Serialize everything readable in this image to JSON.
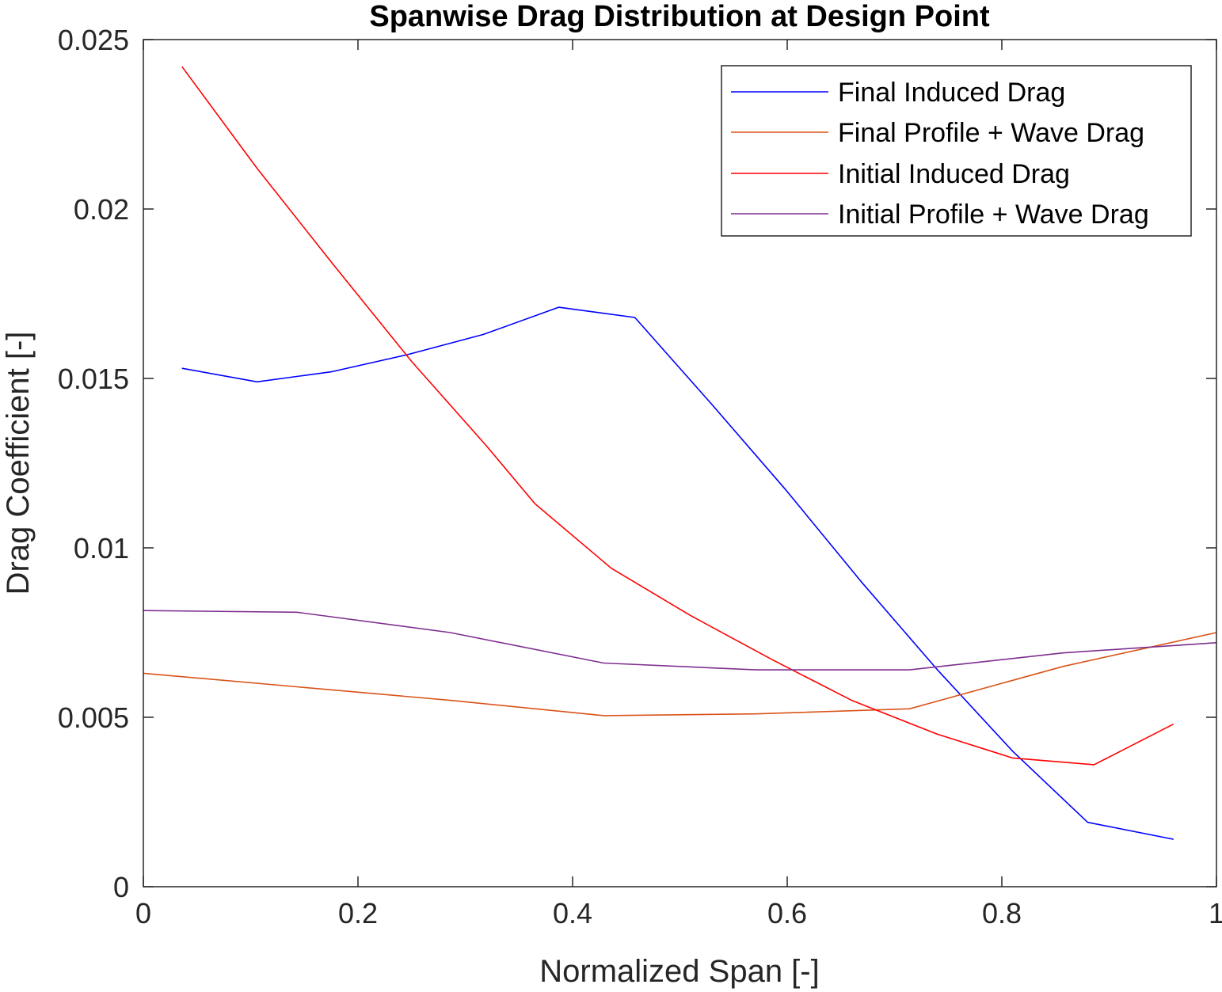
{
  "chart_data": {
    "type": "line",
    "title": "Spanwise Drag Distribution at Design Point",
    "xlabel": "Normalized Span [-]",
    "ylabel": "Drag Coefficient [-]",
    "xlim": [
      0,
      1
    ],
    "ylim": [
      0,
      0.025
    ],
    "xticks": [
      0,
      0.2,
      0.4,
      0.6,
      0.8,
      1
    ],
    "xtick_labels": [
      "0",
      "0.2",
      "0.4",
      "0.6",
      "0.8",
      "1"
    ],
    "yticks": [
      0,
      0.005,
      0.01,
      0.015,
      0.02,
      0.025
    ],
    "ytick_labels": [
      "0",
      "0.005",
      "0.01",
      "0.015",
      "0.02",
      "0.025"
    ],
    "grid": false,
    "legend_position": "top-right",
    "series": [
      {
        "name": "Final Induced Drag",
        "color": "#0000ff",
        "x": [
          0.036,
          0.106,
          0.176,
          0.246,
          0.317,
          0.387,
          0.458,
          0.528,
          0.599,
          0.669,
          0.74,
          0.81,
          0.88,
          0.96
        ],
        "y": [
          0.0153,
          0.0149,
          0.0152,
          0.0157,
          0.0163,
          0.0171,
          0.0168,
          0.0143,
          0.0117,
          0.009,
          0.0064,
          0.004,
          0.0019,
          0.0014
        ]
      },
      {
        "name": "Final Profile + Wave Drag",
        "color": "#d95319",
        "x": [
          0.0,
          0.143,
          0.286,
          0.429,
          0.571,
          0.714,
          0.857,
          1.0
        ],
        "y": [
          0.0063,
          0.0059,
          0.0055,
          0.00505,
          0.0051,
          0.00525,
          0.0065,
          0.0075
        ]
      },
      {
        "name": "Initial Induced Drag",
        "color": "#ff0000",
        "x": [
          0.036,
          0.106,
          0.176,
          0.25,
          0.32,
          0.365,
          0.436,
          0.51,
          0.586,
          0.66,
          0.74,
          0.81,
          0.886,
          0.96
        ],
        "y": [
          0.0242,
          0.0212,
          0.0184,
          0.0155,
          0.013,
          0.0113,
          0.0094,
          0.008,
          0.0067,
          0.0055,
          0.0045,
          0.0038,
          0.0036,
          0.0048
        ]
      },
      {
        "name": "Initial Profile + Wave Drag",
        "color": "#7e2f8e",
        "x": [
          0.0,
          0.143,
          0.286,
          0.429,
          0.571,
          0.714,
          0.857,
          1.0
        ],
        "y": [
          0.00815,
          0.0081,
          0.0075,
          0.0066,
          0.0064,
          0.0064,
          0.0069,
          0.0072
        ]
      }
    ]
  }
}
